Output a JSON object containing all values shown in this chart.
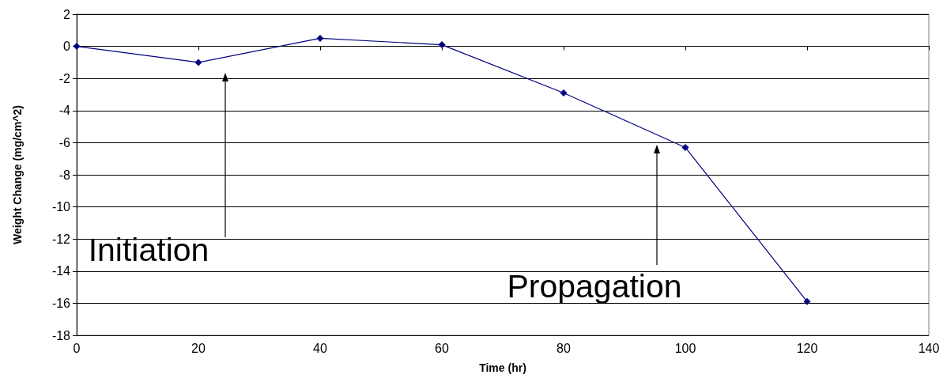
{
  "chart_data": {
    "type": "line",
    "xlabel": "Time (hr)",
    "ylabel": "Weight Change (mg/cm^2)",
    "x": [
      0,
      20,
      40,
      60,
      80,
      100,
      120
    ],
    "series": [
      {
        "color": "#000080",
        "values": [
          0,
          -1.0,
          0.5,
          0.1,
          -2.9,
          -6.3,
          -15.9
        ]
      }
    ],
    "xlim": [
      0,
      140
    ],
    "xticks": [
      0,
      20,
      40,
      60,
      80,
      100,
      120,
      140
    ],
    "ylim": [
      -18,
      2
    ],
    "yticks": [
      -18,
      -16,
      -14,
      -12,
      -10,
      -8,
      -6,
      -4,
      -2,
      0,
      2
    ],
    "grid": "y",
    "marker": "diamond",
    "line_style": "solid",
    "annotations": [
      "Initiation",
      "Propagation"
    ]
  }
}
